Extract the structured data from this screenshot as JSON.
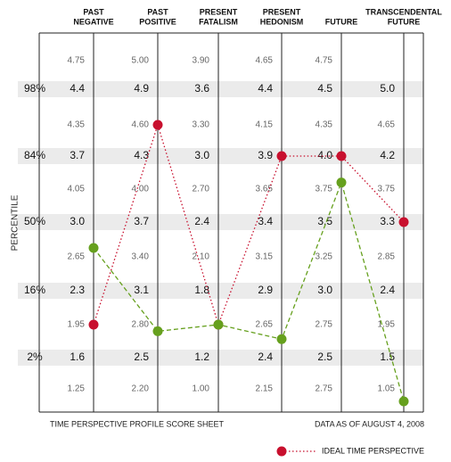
{
  "chart_data": {
    "type": "profile",
    "categories": [
      [
        "PAST",
        "NEGATIVE"
      ],
      [
        "PAST",
        "POSITIVE"
      ],
      [
        "PRESENT",
        "FATALISM"
      ],
      [
        "PRESENT",
        "HEDONISM"
      ],
      [
        "FUTURE"
      ],
      [
        "TRANSCENDENTAL",
        "FUTURE"
      ]
    ],
    "column_ticks": [
      [
        4.75,
        4.4,
        4.35,
        3.7,
        4.05,
        {
          "value": 3,
          "label": "3.0"
        },
        2.65,
        2.3,
        1.95,
        1.6,
        1.25
      ],
      [
        {
          "value": 5,
          "label": "5.00"
        },
        4.9,
        {
          "value": 4.6,
          "label": "4.60"
        },
        4.3,
        {
          "value": 4,
          "label": "4.00"
        },
        3.7,
        {
          "value": 3.4,
          "label": "3.40"
        },
        3.1,
        {
          "value": 2.8,
          "label": "2.80"
        },
        2.5,
        {
          "value": 2.2,
          "label": "2.20"
        }
      ],
      [
        {
          "value": 3.9,
          "label": "3.90"
        },
        3.6,
        {
          "value": 3.3,
          "label": "3.30"
        },
        {
          "value": 3,
          "label": "3.0"
        },
        {
          "value": 2.7,
          "label": "2.70"
        },
        2.4,
        {
          "value": 2.1,
          "label": "2.10"
        },
        1.8,
        null,
        1.2,
        {
          "value": 1,
          "label": "1.00"
        }
      ],
      [
        4.65,
        4.4,
        4.15,
        3.9,
        3.65,
        3.4,
        3.15,
        2.9,
        2.65,
        2.4,
        2.15
      ],
      [
        4.75,
        4.5,
        4.35,
        {
          "value": 4,
          "label": "4.0"
        },
        3.75,
        3.5,
        3.25,
        {
          "value": 3,
          "label": "3.0"
        },
        2.75,
        2.5,
        2.75
      ],
      [
        null,
        {
          "value": 5,
          "label": "5.0"
        },
        4.65,
        4.2,
        3.75,
        3.3,
        2.85,
        2.4,
        1.95,
        1.5,
        1.05
      ]
    ],
    "percentile_rows": [
      1,
      3,
      5,
      7,
      9
    ],
    "percentile_labels": [
      "98%",
      "84%",
      "50%",
      "16%",
      "2%"
    ],
    "ylabel": "PERCENTILE",
    "footer_left": "TIME PERSPECTIVE PROFILE SCORE SHEET",
    "footer_right": "DATA AS OF AUGUST 4, 2008",
    "series": [
      {
        "name": "IDEAL TIME PERSPECTIVE",
        "color": "#c8102e",
        "dash": "1.5,2.5",
        "values": [
          1.95,
          4.6,
          1.5,
          3.9,
          4.0,
          3.3
        ]
      },
      {
        "color": "#66a01e",
        "dash": "5,3",
        "values": [
          2.74,
          2.74,
          1.5,
          2.54,
          3.8,
          0.87
        ]
      }
    ]
  }
}
